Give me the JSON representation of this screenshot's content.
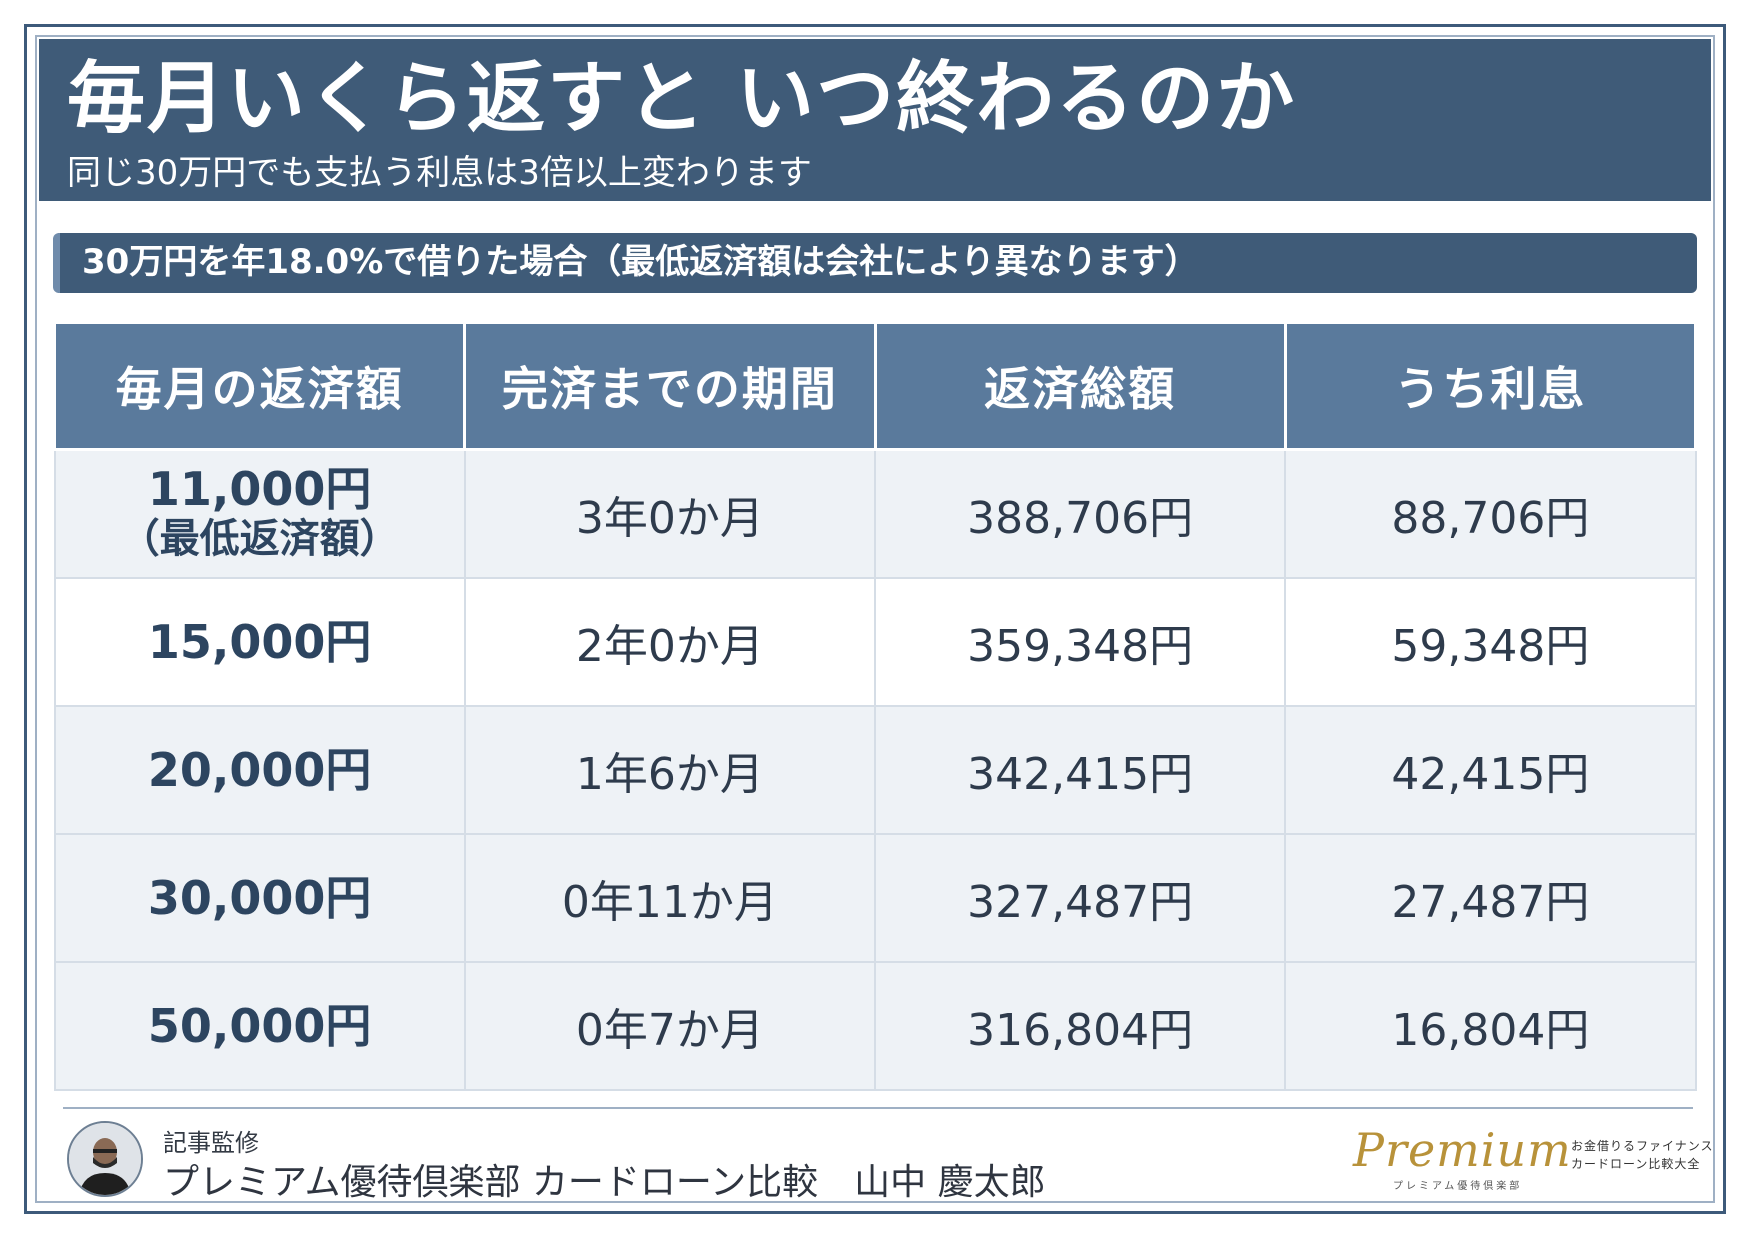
{
  "header": {
    "title": "毎月いくら返すと いつ終わるのか",
    "subtitle": "同じ30万円でも支払う利息は3倍以上変わります"
  },
  "condition": "30万円を年18.0%で借りた場合（最低返済額は会社により異なります）",
  "table": {
    "headers": [
      "毎月の返済額",
      "完済までの期間",
      "返済総額",
      "うち利息"
    ],
    "rows": [
      {
        "monthly": "11,000円",
        "note": "（最低返済額）",
        "period": "3年0か月",
        "total": "388,706円",
        "interest": "88,706円"
      },
      {
        "monthly": "15,000円",
        "note": "",
        "period": "2年0か月",
        "total": "359,348円",
        "interest": "59,348円"
      },
      {
        "monthly": "20,000円",
        "note": "",
        "period": "1年6か月",
        "total": "342,415円",
        "interest": "42,415円"
      },
      {
        "monthly": "30,000円",
        "note": "",
        "period": "0年11か月",
        "total": "327,487円",
        "interest": "27,487円"
      },
      {
        "monthly": "50,000円",
        "note": "",
        "period": "0年7か月",
        "total": "316,804円",
        "interest": "16,804円"
      }
    ]
  },
  "footer": {
    "label": "記事監修",
    "supervisor": "プレミアム優待倶楽部 カードローン比較　山中 慶太郎",
    "brand_script": "Premium",
    "brand_kana": "プレミアム優待倶楽部",
    "brand_tag1": "お金借りるファイナンス",
    "brand_tag2": "カードローン比較大全"
  },
  "colors": {
    "header_bg": "#3f5b78",
    "table_header_bg": "#5a7a9c",
    "row_alt_bg": "#eef2f6",
    "brand_gold": "#b8923a"
  }
}
